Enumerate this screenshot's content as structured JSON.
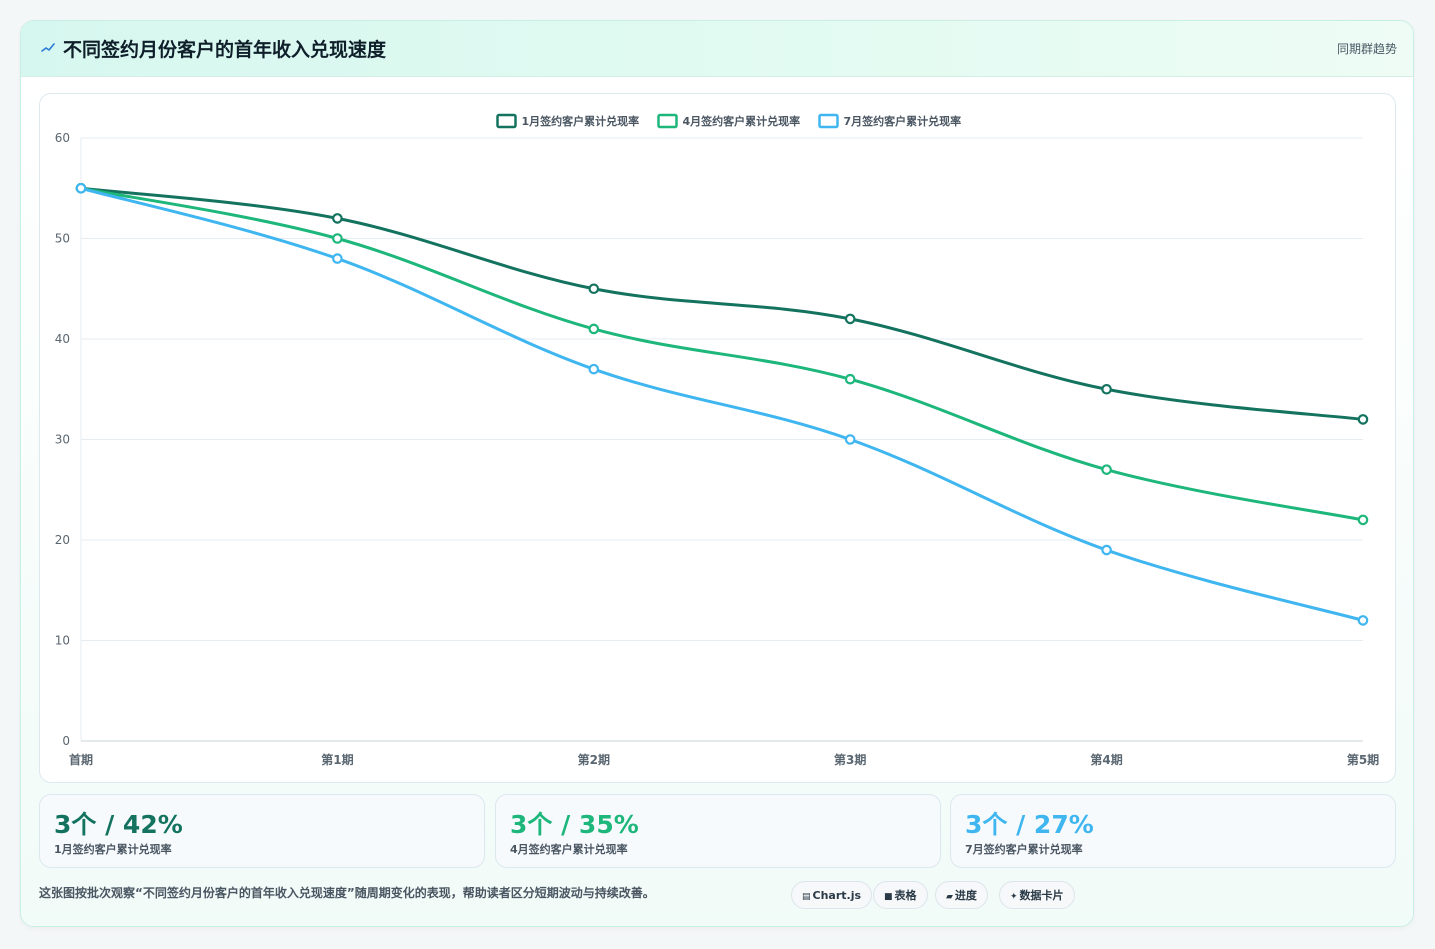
{
  "header": {
    "title": "不同签约月份客户的首年收入兑现速度",
    "tag": "同期群趋势"
  },
  "colors": {
    "series1": "#13735f",
    "series2": "#1db67b",
    "series3": "#3fb6f0",
    "grid": "#e6ecf0",
    "tick": "#5a6670",
    "icon": "#2a7ad8"
  },
  "chart_data": {
    "type": "line",
    "title": "",
    "xlabel": "",
    "ylabel": "",
    "categories": [
      "首期",
      "第1期",
      "第2期",
      "第3期",
      "第4期",
      "第5期"
    ],
    "ylim": [
      0,
      60
    ],
    "yticks": [
      0,
      10,
      20,
      30,
      40,
      50,
      60
    ],
    "grid": true,
    "legend_position": "top-center",
    "smooth": true,
    "series": [
      {
        "name": "1月签约客户累计兑现率",
        "values": [
          55,
          52,
          45,
          42,
          35,
          32
        ]
      },
      {
        "name": "4月签约客户累计兑现率",
        "values": [
          55,
          50,
          41,
          36,
          27,
          22
        ]
      },
      {
        "name": "7月签约客户累计兑现率",
        "values": [
          55,
          48,
          37,
          30,
          19,
          12
        ]
      }
    ]
  },
  "kpis": [
    {
      "value": "3个 / 42%",
      "label": "1月签约客户累计兑现率"
    },
    {
      "value": "3个 / 35%",
      "label": "4月签约客户累计兑现率"
    },
    {
      "value": "3个 / 27%",
      "label": "7月签约客户累计兑现率"
    }
  ],
  "footer": {
    "note": "这张图按批次观察“不同签约月份客户的首年收入兑现速度”随周期变化的表现，帮助读者区分短期波动与持续改善。",
    "chips": [
      {
        "icon": "chart-icon",
        "label": "Chart.js"
      },
      {
        "icon": "table-icon",
        "label": "表格"
      },
      {
        "icon": "progress-icon",
        "label": "进度"
      },
      {
        "icon": "sparkle-icon",
        "label": "数据卡片"
      }
    ]
  }
}
